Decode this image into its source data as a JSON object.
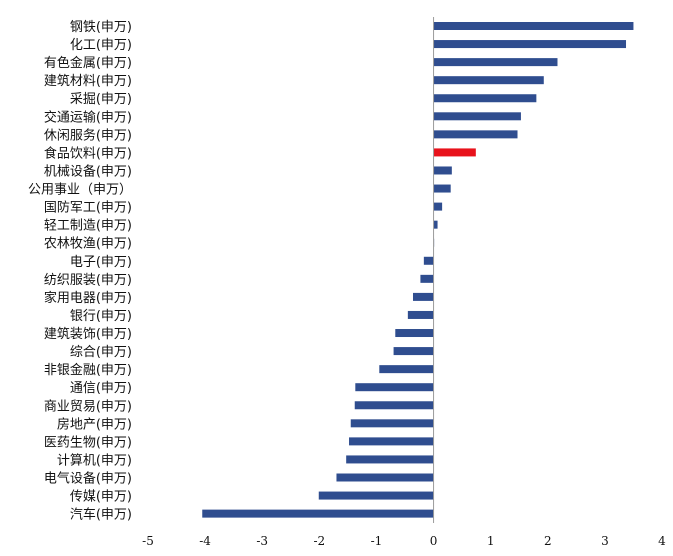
{
  "chart_data": {
    "type": "bar",
    "orientation": "horizontal",
    "categories": [
      "钢铁(申万)",
      "化工(申万)",
      "有色金属(申万)",
      "建筑材料(申万)",
      "采掘(申万)",
      "交通运输(申万)",
      "休闲服务(申万)",
      "食品饮料(申万)",
      "机械设备(申万)",
      "公用事业（申万）",
      "国防军工(申万)",
      "轻工制造(申万)",
      "农林牧渔(申万)",
      "电子(申万)",
      "纺织服装(申万)",
      "家用电器(申万)",
      "银行(申万)",
      "建筑装饰(申万)",
      "综合(申万)",
      "非银金融(申万)",
      "通信(申万)",
      "商业贸易(申万)",
      "房地产(申万)",
      "医药生物(申万)",
      "计算机(申万)",
      "电气设备(申万)",
      "传媒(申万)",
      "汽车(申万)"
    ],
    "values": [
      3.5,
      3.37,
      2.17,
      1.93,
      1.8,
      1.53,
      1.47,
      0.74,
      0.32,
      0.3,
      0.15,
      0.07,
      0.01,
      -0.17,
      -0.23,
      -0.36,
      -0.45,
      -0.67,
      -0.7,
      -0.95,
      -1.37,
      -1.38,
      -1.45,
      -1.48,
      -1.53,
      -1.7,
      -2.01,
      -4.05
    ],
    "highlight_category": "食品饮料(申万)",
    "xlim": [
      -5,
      4
    ],
    "xticks": [
      -5,
      -4,
      -3,
      -2,
      -1,
      0,
      1,
      2,
      3,
      4
    ],
    "title": "",
    "xlabel": "",
    "ylabel": "",
    "grid": false,
    "colors": {
      "bar": "#2f4d8f",
      "highlight": "#e8121b",
      "axis": "#9a9a9a"
    }
  }
}
